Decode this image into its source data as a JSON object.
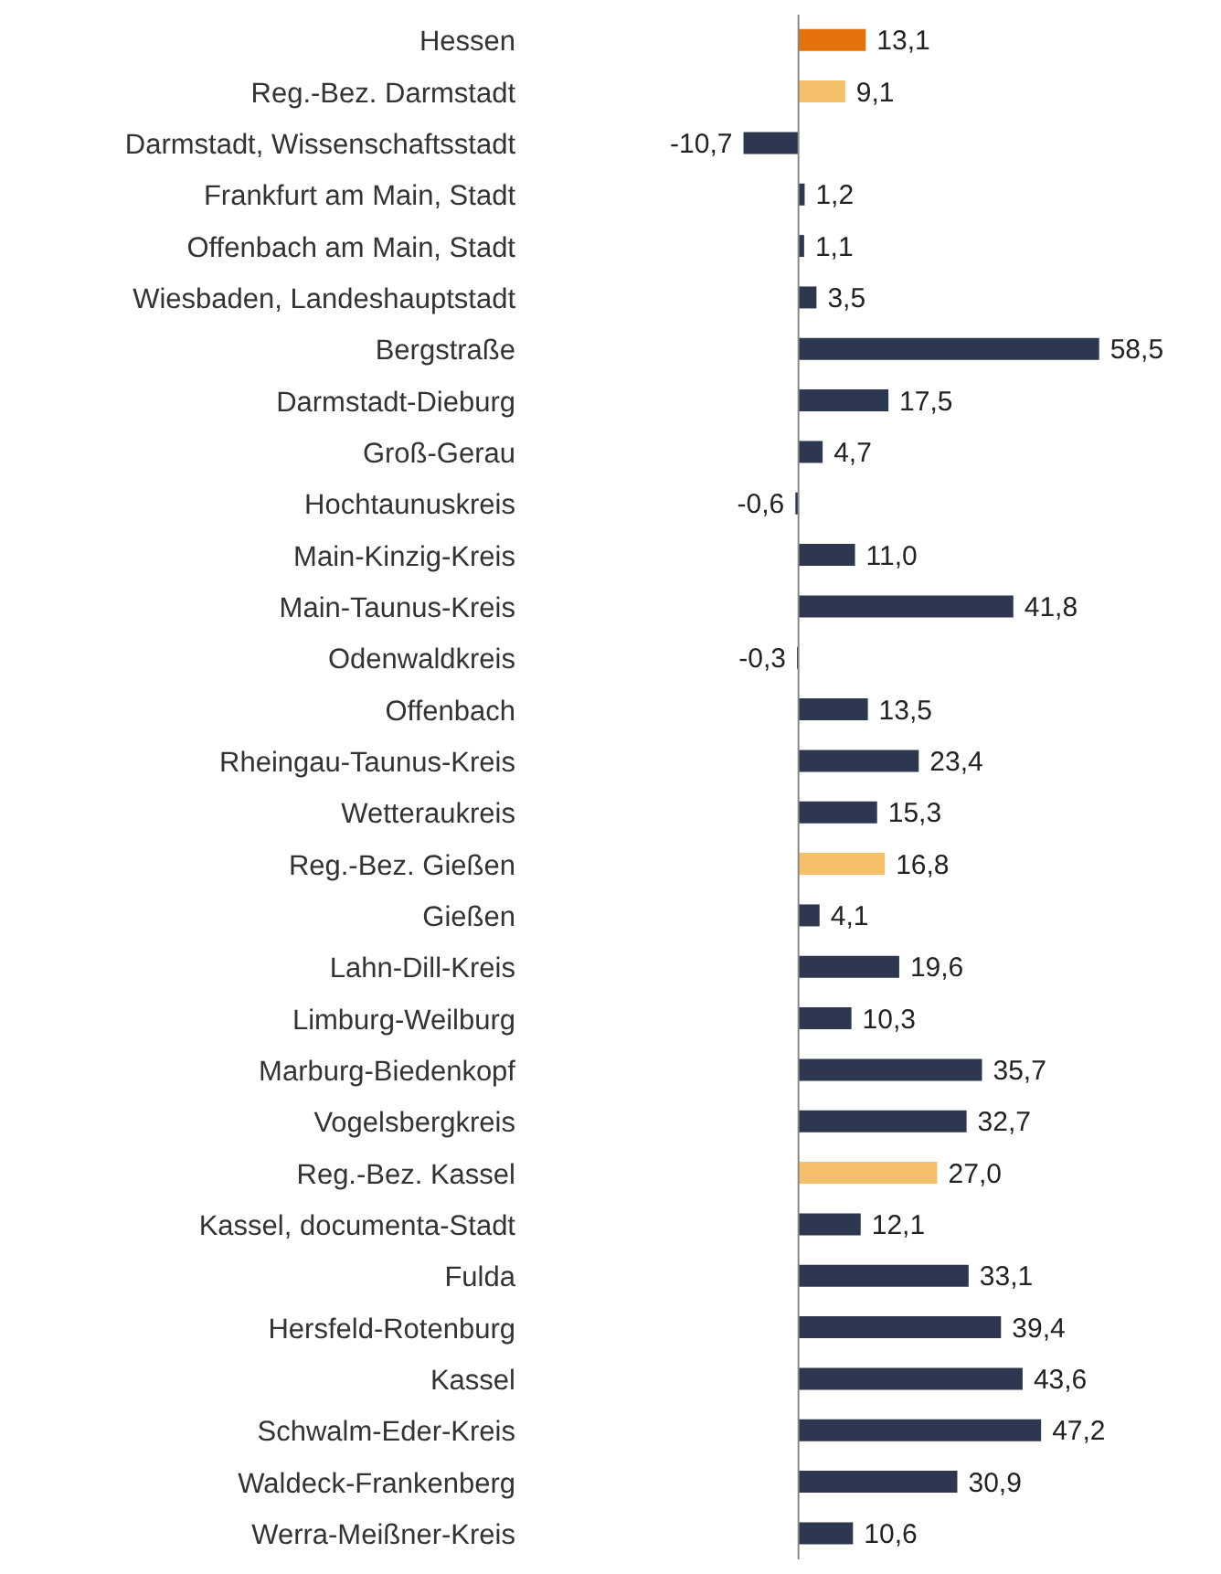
{
  "chart_data": {
    "type": "bar",
    "orientation": "horizontal",
    "value_labels": [
      "13,1",
      "9,1",
      "-10,7",
      "1,2",
      "1,1",
      "3,5",
      "58,5",
      "17,5",
      "4,7",
      "-0,6",
      "11,0",
      "41,8",
      "-0,3",
      "13,5",
      "23,4",
      "15,3",
      "16,8",
      "4,1",
      "19,6",
      "10,3",
      "35,7",
      "32,7",
      "27,0",
      "12,1",
      "33,1",
      "39,4",
      "43,6",
      "47,2",
      "30,9",
      "10,6"
    ],
    "categories": [
      "Hessen",
      "Reg.-Bez. Darmstadt",
      "Darmstadt, Wissenschaftsstadt",
      "Frankfurt am Main, Stadt",
      "Offenbach am Main, Stadt",
      "Wiesbaden, Landeshauptstadt",
      "Bergstraße",
      "Darmstadt-Dieburg",
      "Groß-Gerau",
      "Hochtaunuskreis",
      "Main-Kinzig-Kreis",
      "Main-Taunus-Kreis",
      "Odenwaldkreis",
      "Offenbach",
      "Rheingau-Taunus-Kreis",
      "Wetteraukreis",
      "Reg.-Bez. Gießen",
      "Gießen",
      "Lahn-Dill-Kreis",
      "Limburg-Weilburg",
      "Marburg-Biedenkopf",
      "Vogelsbergkreis",
      "Reg.-Bez. Kassel",
      "Kassel, documenta-Stadt",
      "Fulda",
      "Hersfeld-Rotenburg",
      "Kassel",
      "Schwalm-Eder-Kreis",
      "Waldeck-Frankenberg",
      "Werra-Meißner-Kreis"
    ],
    "values": [
      13.1,
      9.1,
      -10.7,
      1.2,
      1.1,
      3.5,
      58.5,
      17.5,
      4.7,
      -0.6,
      11.0,
      41.8,
      -0.3,
      13.5,
      23.4,
      15.3,
      16.8,
      4.1,
      19.6,
      10.3,
      35.7,
      32.7,
      27.0,
      12.1,
      33.1,
      39.4,
      43.6,
      47.2,
      30.9,
      10.6
    ],
    "colors": [
      "#e3720b",
      "#f5c06a",
      "#2e3750",
      "#2e3750",
      "#2e3750",
      "#2e3750",
      "#2e3750",
      "#2e3750",
      "#2e3750",
      "#2e3750",
      "#2e3750",
      "#2e3750",
      "#2e3750",
      "#2e3750",
      "#2e3750",
      "#2e3750",
      "#f5c06a",
      "#2e3750",
      "#2e3750",
      "#2e3750",
      "#2e3750",
      "#2e3750",
      "#f5c06a",
      "#2e3750",
      "#2e3750",
      "#2e3750",
      "#2e3750",
      "#2e3750",
      "#2e3750",
      "#2e3750"
    ]
  }
}
